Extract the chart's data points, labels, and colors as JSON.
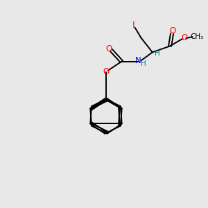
{
  "background_color": "#e8e8e8",
  "bond_color": "#000000",
  "atom_colors": {
    "O": "#ff0000",
    "N": "#0000cc",
    "I": "#cc00cc",
    "H": "#008080",
    "C": "#000000"
  },
  "lw": 1.4,
  "fs": 8.5,
  "fs_small": 7.5
}
